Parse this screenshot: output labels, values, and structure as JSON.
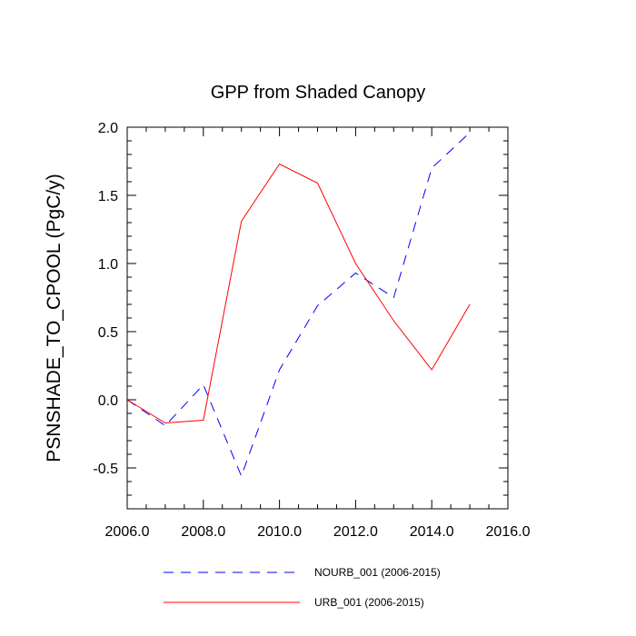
{
  "chart_data": {
    "type": "line",
    "title": "GPP from Shaded Canopy",
    "xlabel": "",
    "ylabel": "PSNSHADE_TO_CPOOL  (PgC/y)",
    "xlim": [
      2006,
      2016
    ],
    "ylim": [
      -0.8,
      2.0
    ],
    "xticks": [
      2006,
      2008,
      2010,
      2012,
      2014,
      2016
    ],
    "xtick_labels": [
      "2006.0",
      "2008.0",
      "2010.0",
      "2012.0",
      "2014.0",
      "2016.0"
    ],
    "yticks": [
      -0.5,
      0.0,
      0.5,
      1.0,
      1.5,
      2.0
    ],
    "ytick_labels": [
      "-0.5",
      "0.0",
      "0.5",
      "1.0",
      "1.5",
      "2.0"
    ],
    "x": [
      2006,
      2007,
      2008,
      2009,
      2010,
      2011,
      2012,
      2013,
      2014,
      2015
    ],
    "series": [
      {
        "name": "NOURB_001 (2006-2015)",
        "color": "#0000ff",
        "style": "dashed",
        "values": [
          0.0,
          -0.19,
          0.11,
          -0.56,
          0.22,
          0.69,
          0.93,
          0.75,
          1.7,
          1.96
        ]
      },
      {
        "name": "URB_001 (2006-2015)",
        "color": "#ff0000",
        "style": "solid",
        "values": [
          0.0,
          -0.17,
          -0.15,
          1.31,
          1.73,
          1.59,
          1.0,
          0.58,
          0.22,
          0.7
        ]
      }
    ],
    "grid": false,
    "legend_position": "bottom"
  }
}
